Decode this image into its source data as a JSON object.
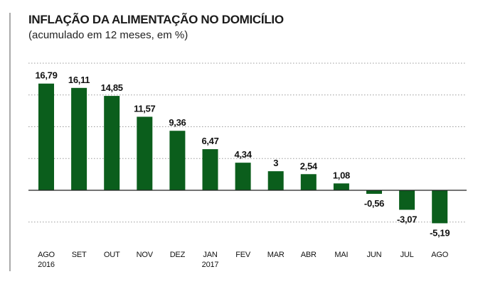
{
  "title": "INFLAÇÃO DA ALIMENTAÇÃO NO DOMICÍLIO",
  "subtitle": "(acumulado em 12 meses, em %)",
  "colors": {
    "bar": "#0b5e1c",
    "grid": "#9a9a9a",
    "zero": "#222222",
    "frame": "#555555",
    "text": "#111111"
  },
  "chart_data": {
    "type": "bar",
    "title": "INFLAÇÃO DA ALIMENTAÇÃO NO DOMICÍLIO",
    "subtitle": "(acumulado em 12 meses, em %)",
    "categories": [
      [
        "AGO",
        "2016"
      ],
      [
        "SET"
      ],
      [
        "OUT"
      ],
      [
        "NOV"
      ],
      [
        "DEZ"
      ],
      [
        "JAN",
        "2017"
      ],
      [
        "FEV"
      ],
      [
        "MAR"
      ],
      [
        "ABR"
      ],
      [
        "MAI"
      ],
      [
        "JUN"
      ],
      [
        "JUL"
      ],
      [
        "AGO"
      ]
    ],
    "values": [
      16.79,
      16.11,
      14.85,
      11.57,
      9.36,
      6.47,
      4.34,
      3,
      2.54,
      1.08,
      -0.56,
      -3.07,
      -5.19
    ],
    "labels": [
      "16,79",
      "16,11",
      "14,85",
      "11,57",
      "9,36",
      "6,47",
      "4,34",
      "3",
      "2,54",
      "1,08",
      "-0,56",
      "-3,07",
      "-5,19"
    ],
    "ylim": [
      -5,
      20
    ],
    "grid": true,
    "xlabel": "",
    "ylabel": ""
  }
}
